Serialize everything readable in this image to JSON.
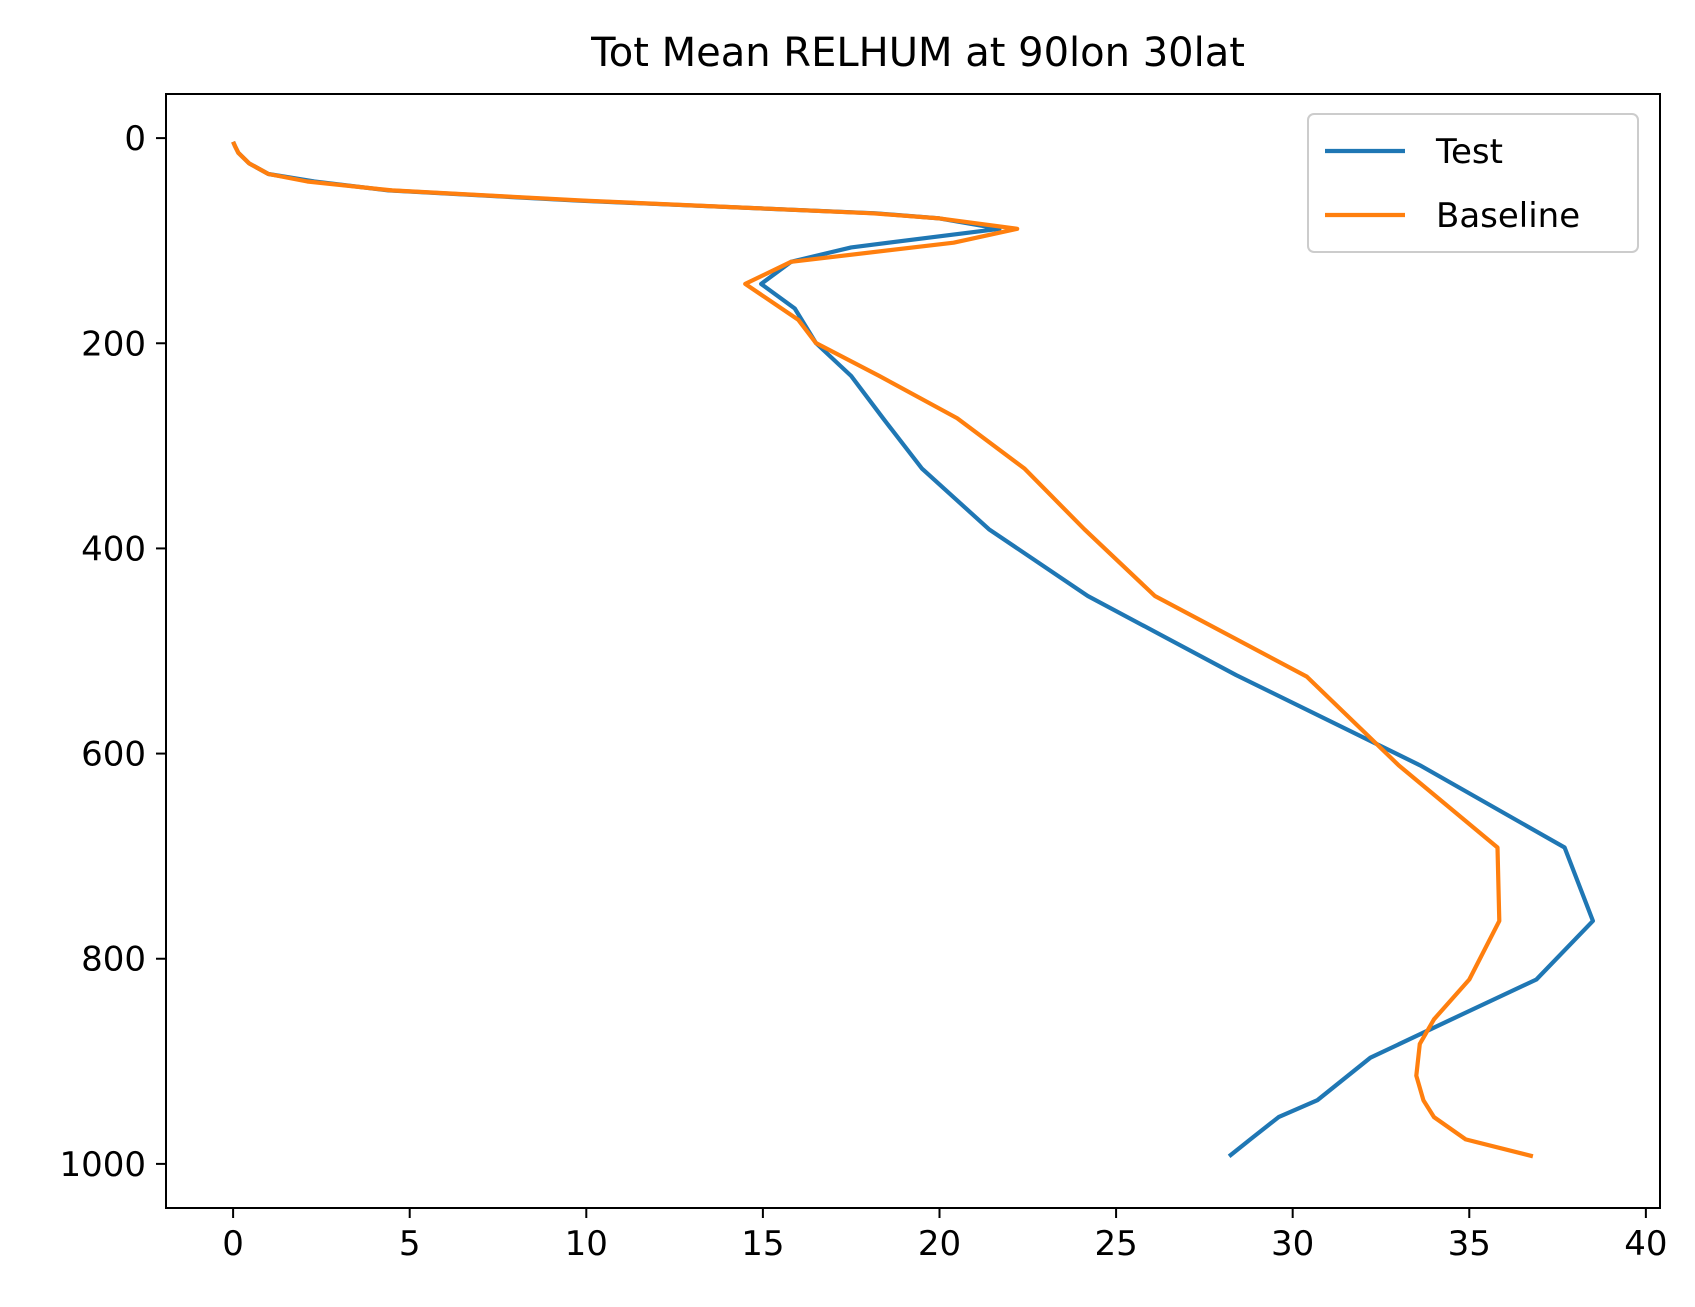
{
  "chart_data": {
    "type": "line",
    "title": "Tot Mean RELHUM at 90lon 30lat",
    "xlabel": "",
    "ylabel": "",
    "xlim": [
      -1.9,
      40.4
    ],
    "ylim": [
      1043,
      -43
    ],
    "y_inverted": true,
    "x_ticks": [
      0,
      5,
      10,
      15,
      20,
      25,
      30,
      35,
      40
    ],
    "y_ticks": [
      0,
      200,
      400,
      600,
      800,
      1000
    ],
    "grid": false,
    "legend_position": "upper right",
    "series": [
      {
        "name": "Test",
        "color": "#1f77b4",
        "x": [
          0.0,
          0.05,
          0.15,
          0.45,
          1.0,
          2.3,
          4.4,
          9.8,
          18.2,
          20.0,
          21.7,
          17.5,
          15.8,
          14.95,
          15.9,
          16.5,
          17.5,
          18.4,
          19.5,
          21.4,
          24.2,
          28.4,
          33.6,
          37.7,
          38.5,
          36.9,
          34.5,
          32.2,
          30.7,
          29.6,
          28.8,
          28.2
        ],
        "y": [
          3.6,
          7.6,
          14.4,
          24.6,
          35.0,
          42.3,
          51.0,
          61.0,
          73.3,
          78.3,
          88.4,
          106.5,
          120.6,
          142.1,
          166.0,
          199.7,
          231.9,
          273.1,
          322.0,
          381.3,
          446.4,
          523.5,
          611.3,
          691.6,
          763.1,
          820.2,
          859.0,
          896.5,
          937.9,
          954.4,
          976.1,
          992.6
        ]
      },
      {
        "name": "Baseline",
        "color": "#ff7f0e",
        "x": [
          0.0,
          0.05,
          0.15,
          0.45,
          1.0,
          2.1,
          4.5,
          10.0,
          18.1,
          20.0,
          22.2,
          20.4,
          15.8,
          14.5,
          16.0,
          16.5,
          18.3,
          20.5,
          22.4,
          24.1,
          26.1,
          30.4,
          33.0,
          35.8,
          35.85,
          35.0,
          34.0,
          33.6,
          33.5,
          33.7,
          34.0,
          34.9,
          36.8
        ],
        "y": [
          3.6,
          7.6,
          14.4,
          24.6,
          35.0,
          42.3,
          51.0,
          61.0,
          73.3,
          78.3,
          88.4,
          102.0,
          120.6,
          142.1,
          177.0,
          199.7,
          231.9,
          273.1,
          322.0,
          381.3,
          446.4,
          525.0,
          611.3,
          691.6,
          763.1,
          820.2,
          859.0,
          883.0,
          914.0,
          937.9,
          954.4,
          976.1,
          992.6
        ]
      }
    ]
  }
}
